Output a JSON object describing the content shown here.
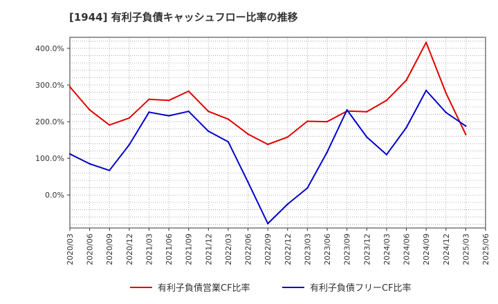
{
  "chart_data": {
    "type": "line",
    "title": "[1944]  有利子負債キャッシュフロー比率の推移",
    "x": [
      "2020/03",
      "2020/06",
      "2020/09",
      "2020/12",
      "2021/03",
      "2021/06",
      "2021/09",
      "2021/12",
      "2022/03",
      "2022/06",
      "2022/09",
      "2022/12",
      "2023/03",
      "2023/06",
      "2023/09",
      "2023/12",
      "2024/03",
      "2024/06",
      "2024/09",
      "2024/12",
      "2025/03",
      "2025/06"
    ],
    "y_ticks": [
      "0.0%",
      "100.0%",
      "200.0%",
      "300.0%",
      "400.0%"
    ],
    "ylim": [
      -90,
      430
    ],
    "grid": true,
    "legend_position": "bottom",
    "series": [
      {
        "name": "有利子負債営業CF比率",
        "color": "#e00000",
        "values": [
          295,
          232,
          191,
          210,
          261,
          258,
          283,
          228,
          207,
          166,
          138,
          158,
          201,
          200,
          229,
          227,
          258,
          313,
          416,
          278,
          165,
          null
        ]
      },
      {
        "name": "有利子負債フリーCF比率",
        "color": "#0000cc",
        "values": [
          112,
          85,
          67,
          137,
          226,
          216,
          228,
          174,
          145,
          35,
          -78,
          -25,
          19,
          117,
          232,
          158,
          110,
          184,
          285,
          225,
          188,
          null
        ]
      }
    ]
  }
}
